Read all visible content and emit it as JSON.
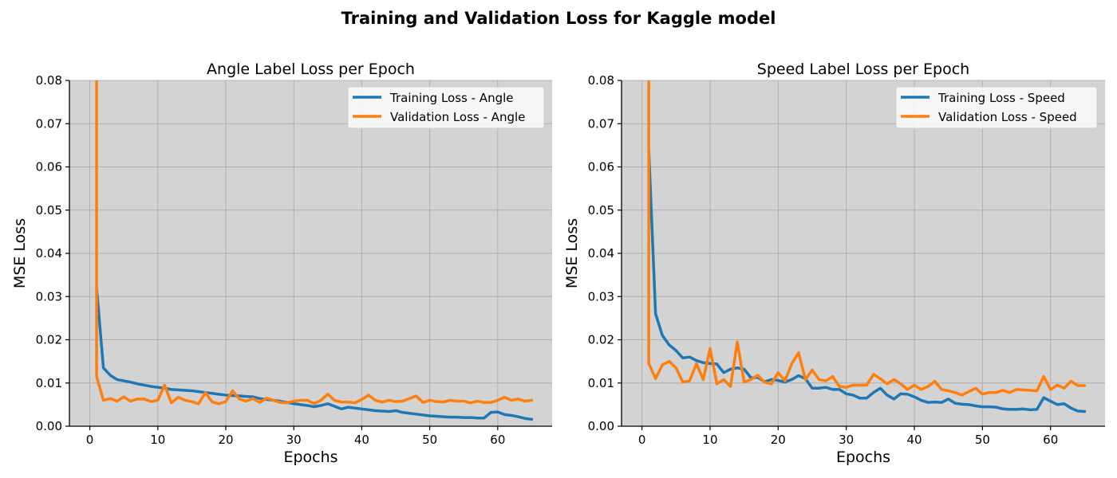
{
  "figure": {
    "suptitle": "Training and Validation Loss for Kaggle model"
  },
  "chart_data": [
    {
      "type": "line",
      "title": "Angle Label Loss per Epoch",
      "xlabel": "Epochs",
      "ylabel": "MSE Loss",
      "xlim": [
        -3,
        68
      ],
      "ylim": [
        0,
        0.08
      ],
      "xticks": [
        0,
        10,
        20,
        30,
        40,
        50,
        60
      ],
      "yticks": [
        0,
        0.01,
        0.02,
        0.03,
        0.04,
        0.05,
        0.06,
        0.07,
        0.08
      ],
      "grid": true,
      "legend_position": "top-right",
      "background": "#d3d3d3",
      "series": [
        {
          "name": "Training Loss - Angle",
          "color": "#1f77b4",
          "x": [
            1,
            2,
            3,
            4,
            5,
            6,
            7,
            8,
            9,
            10,
            11,
            12,
            13,
            14,
            15,
            16,
            17,
            18,
            19,
            20,
            21,
            22,
            23,
            24,
            25,
            26,
            27,
            28,
            29,
            30,
            31,
            32,
            33,
            34,
            35,
            36,
            37,
            38,
            39,
            40,
            41,
            42,
            43,
            44,
            45,
            46,
            47,
            48,
            49,
            50,
            51,
            52,
            53,
            54,
            55,
            56,
            57,
            58,
            59,
            60,
            61,
            62,
            63,
            64,
            65
          ],
          "values": [
            0.032,
            0.0135,
            0.0118,
            0.0108,
            0.0105,
            0.0102,
            0.0098,
            0.0095,
            0.0092,
            0.009,
            0.0088,
            0.0085,
            0.0084,
            0.0083,
            0.0082,
            0.008,
            0.0078,
            0.0076,
            0.0074,
            0.0072,
            0.0071,
            0.007,
            0.0069,
            0.0068,
            0.0064,
            0.0062,
            0.006,
            0.0058,
            0.0055,
            0.0052,
            0.005,
            0.0048,
            0.0045,
            0.0048,
            0.0052,
            0.0046,
            0.004,
            0.0044,
            0.0042,
            0.004,
            0.0038,
            0.0036,
            0.0035,
            0.0034,
            0.0036,
            0.0032,
            0.003,
            0.0028,
            0.0026,
            0.0024,
            0.0023,
            0.0022,
            0.0021,
            0.0021,
            0.002,
            0.002,
            0.0019,
            0.0019,
            0.0032,
            0.0033,
            0.0027,
            0.0025,
            0.0022,
            0.0018,
            0.0016
          ]
        },
        {
          "name": "Validation Loss - Angle",
          "color": "#ff7f0e",
          "x": [
            1,
            2,
            3,
            4,
            5,
            6,
            7,
            8,
            9,
            10,
            11,
            12,
            13,
            14,
            15,
            16,
            17,
            18,
            19,
            20,
            21,
            22,
            23,
            24,
            25,
            26,
            27,
            28,
            29,
            30,
            31,
            32,
            33,
            34,
            35,
            36,
            37,
            38,
            39,
            40,
            41,
            42,
            43,
            44,
            45,
            46,
            47,
            48,
            49,
            50,
            51,
            52,
            53,
            54,
            55,
            56,
            57,
            58,
            59,
            60,
            61,
            62,
            63,
            64,
            65
          ],
          "values": [
            0.0115,
            0.006,
            0.0064,
            0.0058,
            0.0068,
            0.0058,
            0.0063,
            0.0063,
            0.0057,
            0.006,
            0.0095,
            0.0054,
            0.0067,
            0.006,
            0.0057,
            0.0052,
            0.0078,
            0.0056,
            0.0052,
            0.0057,
            0.0082,
            0.0063,
            0.0058,
            0.0064,
            0.0055,
            0.0065,
            0.006,
            0.0055,
            0.0054,
            0.0058,
            0.006,
            0.006,
            0.0052,
            0.006,
            0.0074,
            0.006,
            0.0056,
            0.0056,
            0.0054,
            0.0062,
            0.0072,
            0.006,
            0.0056,
            0.006,
            0.0057,
            0.0058,
            0.0064,
            0.007,
            0.0055,
            0.006,
            0.0057,
            0.0056,
            0.006,
            0.0058,
            0.0058,
            0.0054,
            0.0058,
            0.0055,
            0.0055,
            0.006,
            0.0067,
            0.006,
            0.0063,
            0.0058,
            0.006
          ],
          "spike": {
            "x": 1,
            "value": 0.085
          }
        }
      ]
    },
    {
      "type": "line",
      "title": "Speed Label Loss per Epoch",
      "xlabel": "Epochs",
      "ylabel": "MSE Loss",
      "xlim": [
        -3,
        68
      ],
      "ylim": [
        0,
        0.08
      ],
      "xticks": [
        0,
        10,
        20,
        30,
        40,
        50,
        60
      ],
      "yticks": [
        0,
        0.01,
        0.02,
        0.03,
        0.04,
        0.05,
        0.06,
        0.07,
        0.08
      ],
      "grid": true,
      "legend_position": "top-right",
      "background": "#d3d3d3",
      "series": [
        {
          "name": "Training Loss - Speed",
          "color": "#1f77b4",
          "x": [
            1,
            2,
            3,
            4,
            5,
            6,
            7,
            8,
            9,
            10,
            11,
            12,
            13,
            14,
            15,
            16,
            17,
            18,
            19,
            20,
            21,
            22,
            23,
            24,
            25,
            26,
            27,
            28,
            29,
            30,
            31,
            32,
            33,
            34,
            35,
            36,
            37,
            38,
            39,
            40,
            41,
            42,
            43,
            44,
            45,
            46,
            47,
            48,
            49,
            50,
            51,
            52,
            53,
            54,
            55,
            56,
            57,
            58,
            59,
            60,
            61,
            62,
            63,
            64,
            65
          ],
          "values": [
            0.064,
            0.026,
            0.021,
            0.0188,
            0.0175,
            0.0158,
            0.016,
            0.0152,
            0.0147,
            0.0145,
            0.0144,
            0.0124,
            0.0132,
            0.0135,
            0.0132,
            0.0112,
            0.0113,
            0.0103,
            0.0108,
            0.0106,
            0.0102,
            0.0108,
            0.0117,
            0.011,
            0.0088,
            0.0088,
            0.009,
            0.0085,
            0.0085,
            0.0075,
            0.0072,
            0.0065,
            0.0065,
            0.0078,
            0.0088,
            0.0072,
            0.0063,
            0.0075,
            0.0074,
            0.0068,
            0.006,
            0.0055,
            0.0056,
            0.0055,
            0.0063,
            0.0053,
            0.0051,
            0.005,
            0.0047,
            0.0045,
            0.0045,
            0.0044,
            0.004,
            0.0039,
            0.0039,
            0.004,
            0.0038,
            0.0039,
            0.0066,
            0.0058,
            0.005,
            0.0052,
            0.0042,
            0.0035,
            0.0034
          ]
        },
        {
          "name": "Validation Loss - Speed",
          "color": "#ff7f0e",
          "x": [
            1,
            2,
            3,
            4,
            5,
            6,
            7,
            8,
            9,
            10,
            11,
            12,
            13,
            14,
            15,
            16,
            17,
            18,
            19,
            20,
            21,
            22,
            23,
            24,
            25,
            26,
            27,
            28,
            29,
            30,
            31,
            32,
            33,
            34,
            35,
            36,
            37,
            38,
            39,
            40,
            41,
            42,
            43,
            44,
            45,
            46,
            47,
            48,
            49,
            50,
            51,
            52,
            53,
            54,
            55,
            56,
            57,
            58,
            59,
            60,
            61,
            62,
            63,
            64,
            65
          ],
          "values": [
            0.0145,
            0.011,
            0.0142,
            0.015,
            0.0135,
            0.0102,
            0.0105,
            0.0145,
            0.0108,
            0.018,
            0.0098,
            0.0108,
            0.0092,
            0.0195,
            0.0102,
            0.0108,
            0.0118,
            0.0102,
            0.0098,
            0.0124,
            0.0105,
            0.0145,
            0.017,
            0.0108,
            0.013,
            0.0108,
            0.0105,
            0.0115,
            0.0092,
            0.009,
            0.0095,
            0.0095,
            0.0095,
            0.012,
            0.011,
            0.0098,
            0.0108,
            0.0098,
            0.0085,
            0.0095,
            0.0085,
            0.0092,
            0.0104,
            0.0085,
            0.0082,
            0.0078,
            0.0072,
            0.008,
            0.0088,
            0.0074,
            0.0078,
            0.0078,
            0.0083,
            0.0078,
            0.0085,
            0.0084,
            0.0083,
            0.0082,
            0.0115,
            0.0085,
            0.0095,
            0.0088,
            0.0104,
            0.0094,
            0.0094
          ],
          "spike": {
            "x": 1,
            "value": 0.085
          }
        }
      ]
    }
  ]
}
